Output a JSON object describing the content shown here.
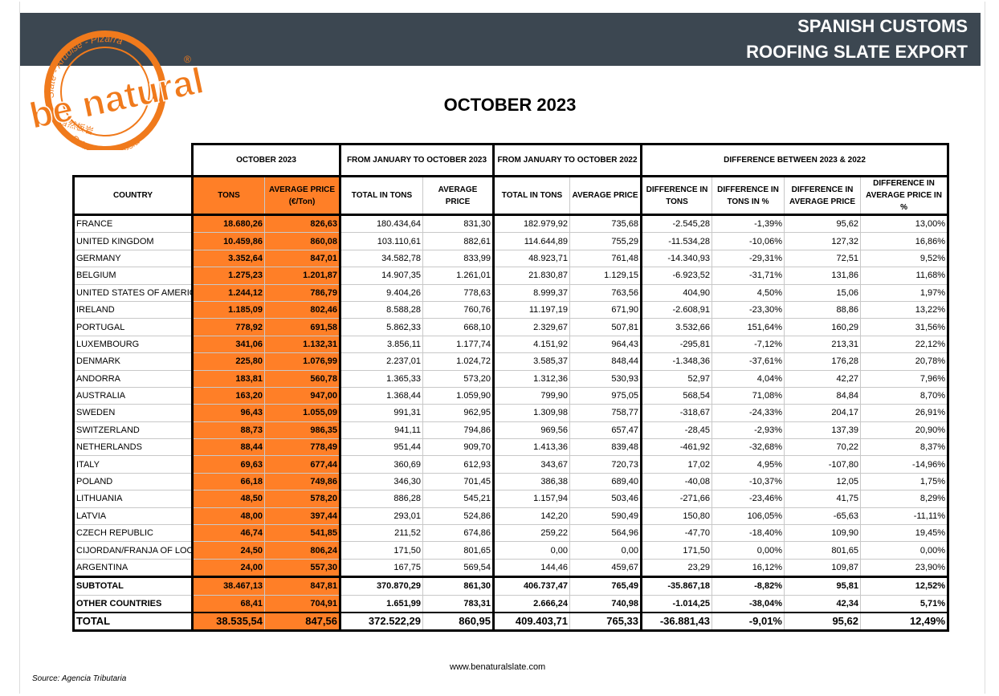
{
  "header": {
    "lines": [
      "SPANISH CUSTOMS",
      "ROOFING SLATE EXPORT"
    ]
  },
  "logo": {
    "brand": "be natural",
    "registered": "®",
    "arc_top": "Slate - Ardoise - Pizarra",
    "arc_bottom": "Schiefer - Ardósia",
    "chinese": "自然板岩"
  },
  "title": "OCTOBER 2023",
  "table": {
    "group_headers": [
      "OCTOBER 2023",
      "FROM JANUARY TO OCTOBER 2023",
      "FROM JANUARY TO OCTOBER 2022",
      "DIFFERENCE BETWEEN 2023 & 2022"
    ],
    "columns": [
      "COUNTRY",
      "TONS",
      "AVERAGE PRICE (€/Ton)",
      "TOTAL IN TONS",
      "AVERAGE PRICE",
      "TOTAL IN TONS",
      "AVERAGE PRICE",
      "DIFFERENCE IN TONS",
      "DIFFERENCE IN TONS IN %",
      "DIFFERENCE IN AVERAGE PRICE",
      "DIFFERENCE IN AVERAGE PRICE IN %"
    ],
    "rows": [
      [
        "FRANCE",
        "18.680,26",
        "826,63",
        "180.434,64",
        "831,30",
        "182.979,92",
        "735,68",
        "-2.545,28",
        "-1,39%",
        "95,62",
        "13,00%"
      ],
      [
        "UNITED KINGDOM",
        "10.459,86",
        "860,08",
        "103.110,61",
        "882,61",
        "114.644,89",
        "755,29",
        "-11.534,28",
        "-10,06%",
        "127,32",
        "16,86%"
      ],
      [
        "GERMANY",
        "3.352,64",
        "847,01",
        "34.582,78",
        "833,99",
        "48.923,71",
        "761,48",
        "-14.340,93",
        "-29,31%",
        "72,51",
        "9,52%"
      ],
      [
        "BELGIUM",
        "1.275,23",
        "1.201,87",
        "14.907,35",
        "1.261,01",
        "21.830,87",
        "1.129,15",
        "-6.923,52",
        "-31,71%",
        "131,86",
        "11,68%"
      ],
      [
        "UNITED STATES OF AMERICA",
        "1.244,12",
        "786,79",
        "9.404,26",
        "778,63",
        "8.999,37",
        "763,56",
        "404,90",
        "4,50%",
        "15,06",
        "1,97%"
      ],
      [
        "IRELAND",
        "1.185,09",
        "802,46",
        "8.588,28",
        "760,76",
        "11.197,19",
        "671,90",
        "-2.608,91",
        "-23,30%",
        "88,86",
        "13,22%"
      ],
      [
        "PORTUGAL",
        "778,92",
        "691,58",
        "5.862,33",
        "668,10",
        "2.329,67",
        "507,81",
        "3.532,66",
        "151,64%",
        "160,29",
        "31,56%"
      ],
      [
        "LUXEMBOURG",
        "341,06",
        "1.132,31",
        "3.856,11",
        "1.177,74",
        "4.151,92",
        "964,43",
        "-295,81",
        "-7,12%",
        "213,31",
        "22,12%"
      ],
      [
        "DENMARK",
        "225,80",
        "1.076,99",
        "2.237,01",
        "1.024,72",
        "3.585,37",
        "848,44",
        "-1.348,36",
        "-37,61%",
        "176,28",
        "20,78%"
      ],
      [
        "ANDORRA",
        "183,81",
        "560,78",
        "1.365,33",
        "573,20",
        "1.312,36",
        "530,93",
        "52,97",
        "4,04%",
        "42,27",
        "7,96%"
      ],
      [
        "AUSTRALIA",
        "163,20",
        "947,00",
        "1.368,44",
        "1.059,90",
        "799,90",
        "975,05",
        "568,54",
        "71,08%",
        "84,84",
        "8,70%"
      ],
      [
        "SWEDEN",
        "96,43",
        "1.055,09",
        "991,31",
        "962,95",
        "1.309,98",
        "758,77",
        "-318,67",
        "-24,33%",
        "204,17",
        "26,91%"
      ],
      [
        "SWITZERLAND",
        "88,73",
        "986,35",
        "941,11",
        "794,86",
        "969,56",
        "657,47",
        "-28,45",
        "-2,93%",
        "137,39",
        "20,90%"
      ],
      [
        "NETHERLANDS",
        "88,44",
        "778,49",
        "951,44",
        "909,70",
        "1.413,36",
        "839,48",
        "-461,92",
        "-32,68%",
        "70,22",
        "8,37%"
      ],
      [
        "ITALY",
        "69,63",
        "677,44",
        "360,69",
        "612,93",
        "343,67",
        "720,73",
        "17,02",
        "4,95%",
        "-107,80",
        "-14,96%"
      ],
      [
        "POLAND",
        "66,18",
        "749,86",
        "346,30",
        "701,45",
        "386,38",
        "689,40",
        "-40,08",
        "-10,37%",
        "12,05",
        "1,75%"
      ],
      [
        "LITHUANIA",
        "48,50",
        "578,20",
        "886,28",
        "545,21",
        "1.157,94",
        "503,46",
        "-271,66",
        "-23,46%",
        "41,75",
        "8,29%"
      ],
      [
        "LATVIA",
        "48,00",
        "397,44",
        "293,01",
        "524,86",
        "142,20",
        "590,49",
        "150,80",
        "106,05%",
        "-65,63",
        "-11,11%"
      ],
      [
        "CZECH REPUBLIC",
        "46,74",
        "541,85",
        "211,52",
        "674,86",
        "259,22",
        "564,96",
        "-47,70",
        "-18,40%",
        "109,90",
        "19,45%"
      ],
      [
        "CIJORDAN/FRANJA OF LOOP",
        "24,50",
        "806,24",
        "171,50",
        "801,65",
        "0,00",
        "0,00",
        "171,50",
        "0,00%",
        "801,65",
        "0,00%"
      ],
      [
        "ARGENTINA",
        "24,00",
        "557,30",
        "167,75",
        "569,54",
        "144,46",
        "459,67",
        "23,29",
        "16,12%",
        "109,87",
        "23,90%"
      ]
    ],
    "footer_rows": [
      [
        "SUBTOTAL",
        "38.467,13",
        "847,81",
        "370.870,29",
        "861,30",
        "406.737,47",
        "765,49",
        "-35.867,18",
        "-8,82%",
        "95,81",
        "12,52%"
      ],
      [
        "OTHER COUNTRIES",
        "68,41",
        "704,91",
        "1.651,99",
        "783,31",
        "2.666,24",
        "740,98",
        "-1.014,25",
        "-38,04%",
        "42,34",
        "5,71%"
      ],
      [
        "TOTAL",
        "38.535,54",
        "847,56",
        "372.522,29",
        "860,95",
        "409.403,71",
        "765,33",
        "-36.881,43",
        "-9,01%",
        "95,62",
        "12,49%"
      ]
    ]
  },
  "footer": {
    "website": "www.benaturalslate.com",
    "source": "Source: Agencia Tributaria"
  }
}
